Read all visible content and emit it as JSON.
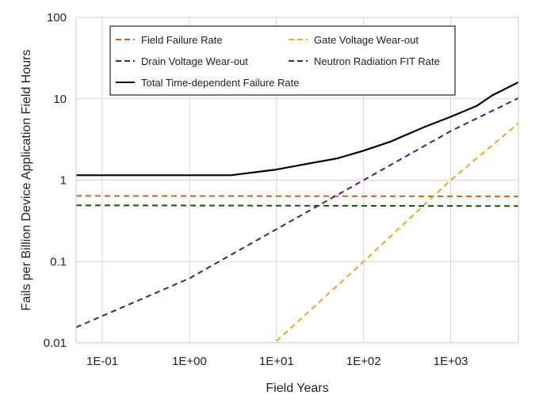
{
  "chart_data": {
    "type": "line",
    "title": "",
    "xlabel": "Field Years",
    "ylabel": "Fails per Billion Device Application Field Hours",
    "x_scale": "log",
    "y_scale": "log",
    "xlim": [
      0.05,
      6000
    ],
    "ylim": [
      0.01,
      100
    ],
    "grid": true,
    "legend_position": "top",
    "x_ticks": [
      {
        "value": 0.1,
        "label": "1E-01"
      },
      {
        "value": 1,
        "label": "1E+00"
      },
      {
        "value": 10,
        "label": "1E+01"
      },
      {
        "value": 100,
        "label": "1E+02"
      },
      {
        "value": 1000,
        "label": "1E+03"
      }
    ],
    "y_ticks": [
      {
        "value": 0.01,
        "label": "0.01"
      },
      {
        "value": 0.1,
        "label": "0.1"
      },
      {
        "value": 1,
        "label": "1"
      },
      {
        "value": 10,
        "label": "10"
      },
      {
        "value": 100,
        "label": "100"
      }
    ],
    "series": [
      {
        "name": "Field Failure Rate",
        "color": "#d2601a",
        "dash": true,
        "x": [
          0.05,
          6000
        ],
        "y": [
          0.64,
          0.63
        ]
      },
      {
        "name": "Gate Voltage Wear-out",
        "color": "#e8a631",
        "dash": true,
        "x": [
          10,
          100,
          1000,
          6000
        ],
        "y": [
          0.0105,
          0.1,
          1.0,
          5.0
        ]
      },
      {
        "name": "Drain Voltage Wear-out",
        "color": "#4b1c7a",
        "dash": true,
        "x": [
          0.05,
          1,
          10,
          100,
          1000,
          6000
        ],
        "y": [
          0.0155,
          0.062,
          0.25,
          1.0,
          4.0,
          10.2
        ]
      },
      {
        "name": "Neutron Radiation FIT Rate",
        "color": "#1e4d12",
        "dash": true,
        "x": [
          0.05,
          6000
        ],
        "y": [
          0.49,
          0.48
        ]
      },
      {
        "name": "Total Time-dependent Failure Rate",
        "color": "#000000",
        "dash": false,
        "x": [
          0.05,
          3,
          10,
          20,
          50,
          100,
          200,
          500,
          1000,
          2000,
          3000,
          6000
        ],
        "y": [
          1.15,
          1.15,
          1.35,
          1.55,
          1.85,
          2.3,
          2.95,
          4.5,
          6.0,
          8.2,
          11.0,
          16.0
        ]
      }
    ]
  }
}
